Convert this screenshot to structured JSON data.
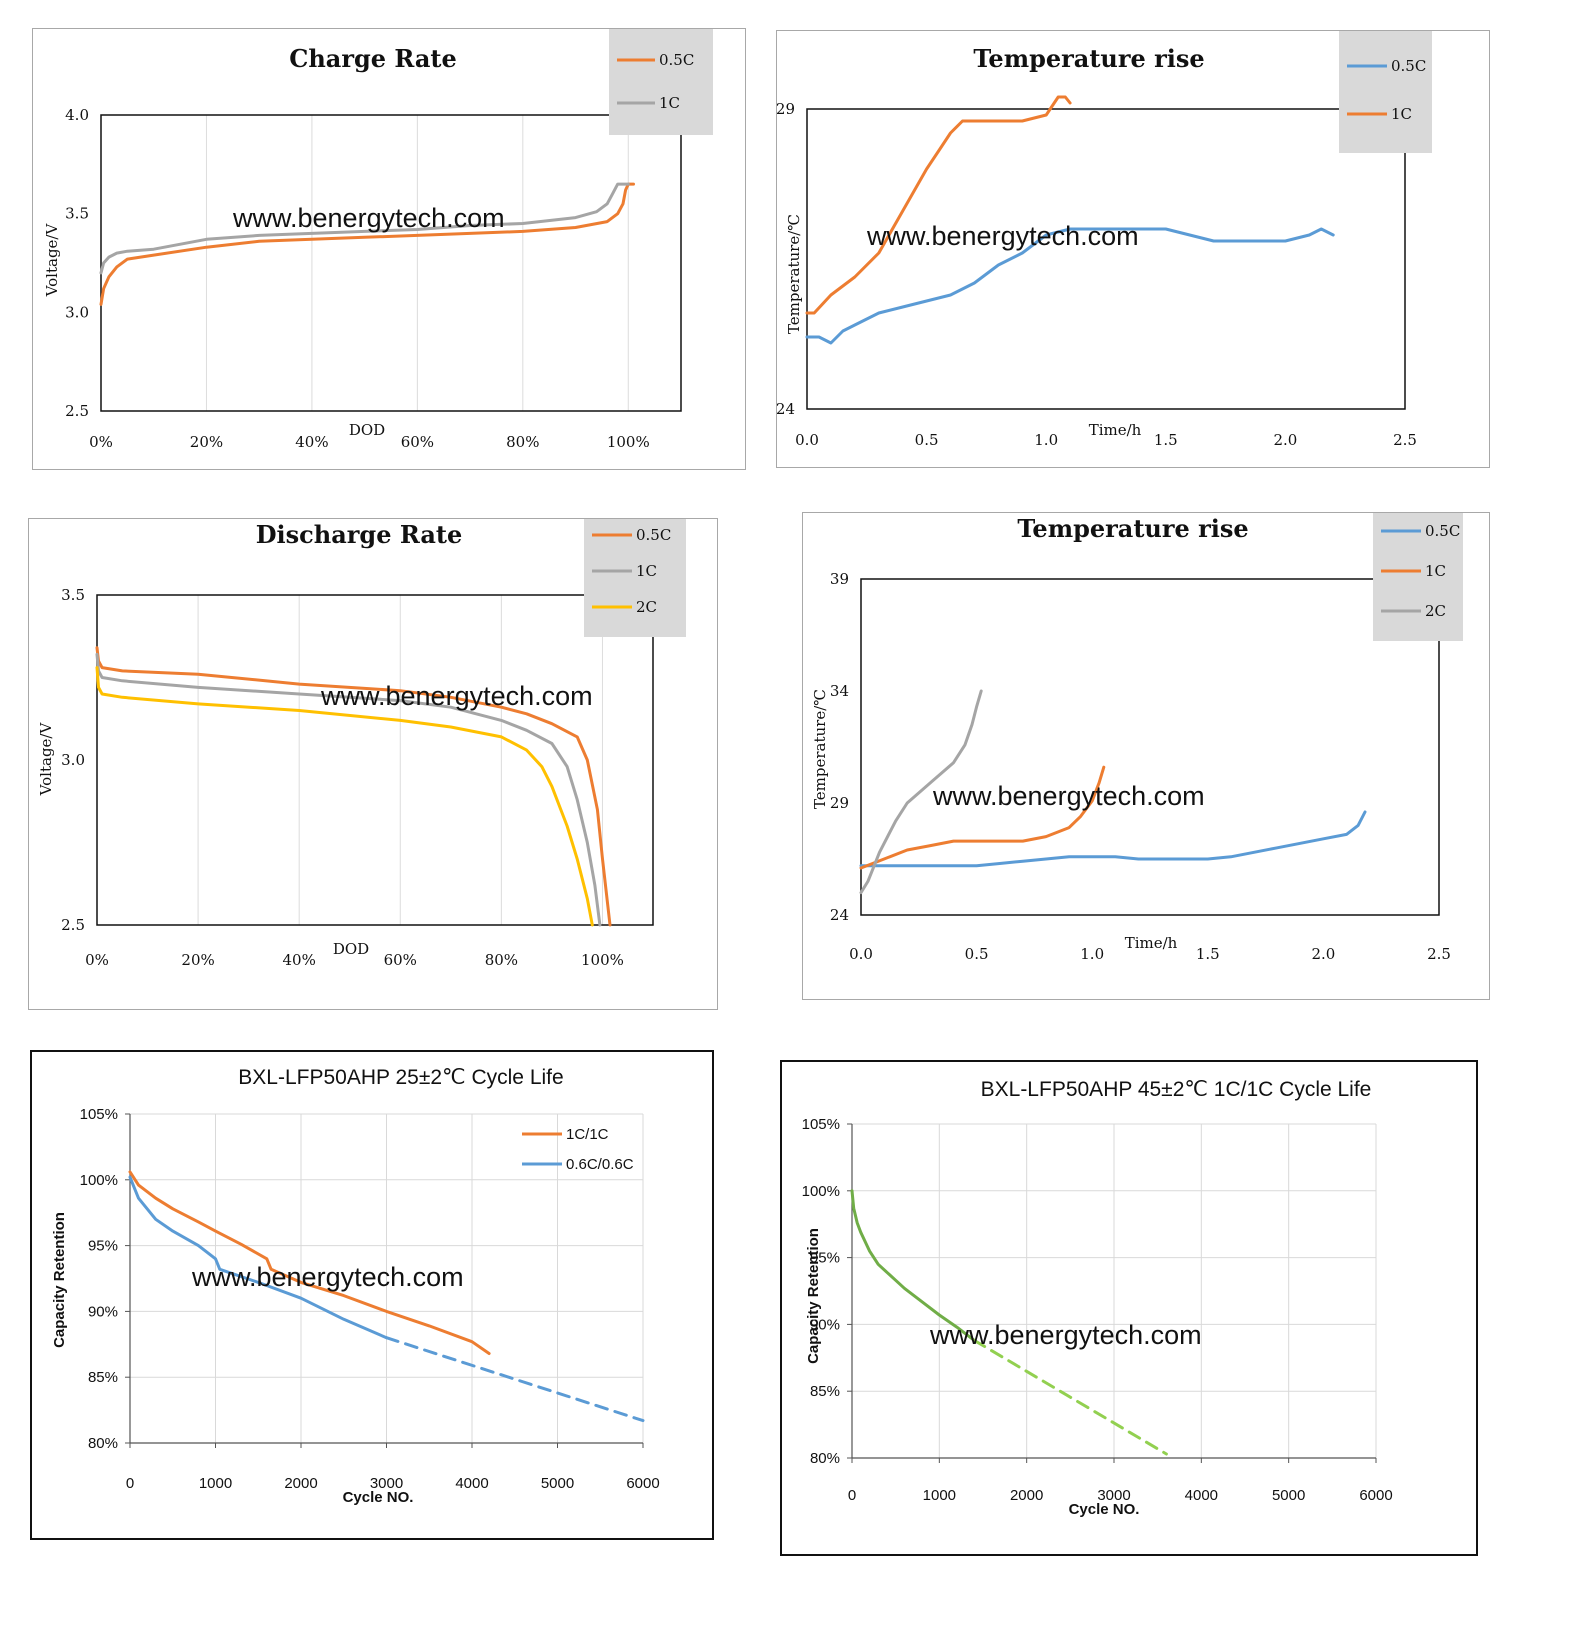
{
  "watermark": "www.benergytech.com",
  "charts": [
    {
      "id": "c1",
      "chart_data": {
        "type": "line",
        "title": "Charge Rate",
        "xlabel": "DOD",
        "ylabel": "Voltage/V",
        "xlim": [
          0,
          110
        ],
        "ylim": [
          2.5,
          4.0
        ],
        "xticks": [
          0,
          20,
          40,
          60,
          80,
          100
        ],
        "xtick_labels": [
          "0%",
          "20%",
          "40%",
          "60%",
          "80%",
          "100%"
        ],
        "yticks": [
          2.5,
          3.0,
          3.5,
          4.0
        ],
        "ytick_labels": [
          "2.5",
          "3.0",
          "3.5",
          "4.0"
        ],
        "grid": "vertical",
        "legend": "top-right",
        "series": [
          {
            "name": "0.5C",
            "color": "#ED7D31",
            "x": [
              0,
              0.5,
              1.5,
              3,
              5,
              10,
              20,
              30,
              40,
              50,
              60,
              70,
              80,
              90,
              96,
              98,
              99,
              99.5,
              100,
              101
            ],
            "y": [
              3.04,
              3.12,
              3.18,
              3.23,
              3.27,
              3.29,
              3.33,
              3.36,
              3.37,
              3.38,
              3.39,
              3.4,
              3.41,
              3.43,
              3.46,
              3.5,
              3.55,
              3.62,
              3.65,
              3.65
            ]
          },
          {
            "name": "1C",
            "color": "#A5A5A5",
            "x": [
              0,
              0.5,
              1.5,
              3,
              5,
              10,
              20,
              30,
              40,
              50,
              60,
              70,
              80,
              90,
              94,
              96,
              97,
              98,
              99,
              100
            ],
            "y": [
              3.2,
              3.25,
              3.28,
              3.3,
              3.31,
              3.32,
              3.37,
              3.39,
              3.4,
              3.41,
              3.42,
              3.44,
              3.45,
              3.48,
              3.51,
              3.55,
              3.6,
              3.65,
              3.65,
              3.65
            ]
          }
        ]
      }
    },
    {
      "id": "c2",
      "chart_data": {
        "type": "line",
        "title": "Temperature rise",
        "xlabel": "Time/h",
        "ylabel": "Temperature/℃",
        "xlim": [
          0,
          2.5
        ],
        "ylim": [
          24,
          29
        ],
        "xticks": [
          0,
          0.5,
          1.0,
          1.5,
          2.0,
          2.5
        ],
        "xtick_labels": [
          "0.0",
          "0.5",
          "1.0",
          "1.5",
          "2.0",
          "2.5"
        ],
        "yticks": [
          24,
          29
        ],
        "ytick_labels": [
          "24",
          "29"
        ],
        "grid": "none",
        "legend": "top-right",
        "series": [
          {
            "name": "0.5C",
            "color": "#5B9BD5",
            "x": [
              0,
              0.05,
              0.1,
              0.15,
              0.2,
              0.3,
              0.4,
              0.5,
              0.6,
              0.7,
              0.8,
              0.9,
              1.0,
              1.1,
              1.2,
              1.3,
              1.4,
              1.5,
              1.6,
              1.7,
              1.8,
              1.9,
              2.0,
              2.1,
              2.15,
              2.2
            ],
            "y": [
              25.2,
              25.2,
              25.1,
              25.3,
              25.4,
              25.6,
              25.7,
              25.8,
              25.9,
              26.1,
              26.4,
              26.6,
              26.9,
              27.0,
              27.0,
              27.0,
              27.0,
              27.0,
              26.9,
              26.8,
              26.8,
              26.8,
              26.8,
              26.9,
              27.0,
              26.9
            ]
          },
          {
            "name": "1C",
            "color": "#ED7D31",
            "x": [
              0,
              0.03,
              0.1,
              0.2,
              0.3,
              0.4,
              0.5,
              0.55,
              0.6,
              0.65,
              0.7,
              0.75,
              0.8,
              0.9,
              1.0,
              1.05,
              1.08,
              1.1
            ],
            "y": [
              25.6,
              25.6,
              25.9,
              26.2,
              26.6,
              27.3,
              28.0,
              28.3,
              28.6,
              28.8,
              28.8,
              28.8,
              28.8,
              28.8,
              28.9,
              29.2,
              29.2,
              29.1
            ]
          }
        ]
      }
    },
    {
      "id": "c3",
      "chart_data": {
        "type": "line",
        "title": "Discharge Rate",
        "xlabel": "DOD",
        "ylabel": "Voltage/V",
        "xlim": [
          0,
          110
        ],
        "ylim": [
          2.5,
          3.5
        ],
        "xticks": [
          0,
          20,
          40,
          60,
          80,
          100
        ],
        "xtick_labels": [
          "0%",
          "20%",
          "40%",
          "60%",
          "80%",
          "100%"
        ],
        "yticks": [
          2.5,
          3.0,
          3.5
        ],
        "ytick_labels": [
          "2.5",
          "3.0",
          "3.5"
        ],
        "grid": "vertical",
        "legend": "top-right",
        "series": [
          {
            "name": "0.5C",
            "color": "#ED7D31",
            "x": [
              0,
              0.3,
              1,
              5,
              20,
              40,
              60,
              70,
              80,
              85,
              90,
              95,
              97,
              99,
              100,
              101.5
            ],
            "y": [
              3.34,
              3.3,
              3.28,
              3.27,
              3.26,
              3.23,
              3.21,
              3.19,
              3.16,
              3.14,
              3.11,
              3.07,
              3.0,
              2.85,
              2.7,
              2.5
            ]
          },
          {
            "name": "1C",
            "color": "#A5A5A5",
            "x": [
              0,
              0.3,
              1,
              5,
              20,
              40,
              60,
              70,
              80,
              85,
              90,
              93,
              95,
              97,
              98.5,
              99.5
            ],
            "y": [
              3.32,
              3.27,
              3.25,
              3.24,
              3.22,
              3.2,
              3.18,
              3.16,
              3.12,
              3.09,
              3.05,
              2.98,
              2.88,
              2.75,
              2.62,
              2.5
            ]
          },
          {
            "name": "2C",
            "color": "#FFC000",
            "x": [
              0,
              0.3,
              1,
              5,
              20,
              40,
              60,
              70,
              80,
              85,
              88,
              90,
              93,
              95,
              97,
              98
            ],
            "y": [
              3.28,
              3.22,
              3.2,
              3.19,
              3.17,
              3.15,
              3.12,
              3.1,
              3.07,
              3.03,
              2.98,
              2.92,
              2.8,
              2.7,
              2.58,
              2.5
            ]
          }
        ]
      }
    },
    {
      "id": "c4",
      "chart_data": {
        "type": "line",
        "title": "Temperature rise",
        "xlabel": "Time/h",
        "ylabel": "Temperature/℃",
        "xlim": [
          0,
          2.5
        ],
        "ylim": [
          24,
          39
        ],
        "xticks": [
          0,
          0.5,
          1.0,
          1.5,
          2.0,
          2.5
        ],
        "xtick_labels": [
          "0.0",
          "0.5",
          "1.0",
          "1.5",
          "2.0",
          "2.5"
        ],
        "yticks": [
          24,
          29,
          34,
          39
        ],
        "ytick_labels": [
          "24",
          "29",
          "34",
          "39"
        ],
        "grid": "none",
        "legend": "top-right",
        "series": [
          {
            "name": "0.5C",
            "color": "#5B9BD5",
            "x": [
              0,
              0.2,
              0.4,
              0.5,
              0.6,
              0.7,
              0.8,
              0.9,
              1.0,
              1.1,
              1.2,
              1.3,
              1.4,
              1.5,
              1.6,
              1.7,
              1.8,
              1.9,
              2.0,
              2.1,
              2.15,
              2.18
            ],
            "y": [
              26.2,
              26.2,
              26.2,
              26.2,
              26.3,
              26.4,
              26.5,
              26.6,
              26.6,
              26.6,
              26.5,
              26.5,
              26.5,
              26.5,
              26.6,
              26.8,
              27.0,
              27.2,
              27.4,
              27.6,
              28.0,
              28.6
            ]
          },
          {
            "name": "1C",
            "color": "#ED7D31",
            "x": [
              0,
              0.1,
              0.2,
              0.3,
              0.4,
              0.5,
              0.6,
              0.7,
              0.8,
              0.9,
              0.95,
              1.0,
              1.03,
              1.05
            ],
            "y": [
              26.1,
              26.5,
              26.9,
              27.1,
              27.3,
              27.3,
              27.3,
              27.3,
              27.5,
              27.9,
              28.4,
              29.1,
              29.9,
              30.6
            ]
          },
          {
            "name": "2C",
            "color": "#A5A5A5",
            "x": [
              0,
              0.03,
              0.08,
              0.15,
              0.2,
              0.3,
              0.4,
              0.45,
              0.48,
              0.5,
              0.52
            ],
            "y": [
              25.0,
              25.5,
              26.8,
              28.2,
              29.0,
              29.9,
              30.8,
              31.6,
              32.5,
              33.3,
              34.0
            ]
          }
        ]
      }
    },
    {
      "id": "c5",
      "chart_data": {
        "type": "line",
        "title": "BXL-LFP50AHP 25±2℃  Cycle Life",
        "xlabel": "Cycle NO.",
        "ylabel": "Capacity Retention",
        "xlim": [
          0,
          6000
        ],
        "ylim": [
          80,
          105
        ],
        "xticks": [
          0,
          1000,
          2000,
          3000,
          4000,
          5000,
          6000
        ],
        "xtick_labels": [
          "0",
          "1000",
          "2000",
          "3000",
          "4000",
          "5000",
          "6000"
        ],
        "yticks": [
          80,
          85,
          90,
          95,
          100,
          105
        ],
        "ytick_labels": [
          "80%",
          "85%",
          "90%",
          "95%",
          "100%",
          "105%"
        ],
        "grid": "both",
        "legend": "top-right",
        "series": [
          {
            "name": "1C/1C",
            "color": "#ED7D31",
            "x": [
              0,
              100,
              300,
              500,
              800,
              1000,
              1300,
              1600,
              1650,
              2000,
              2500,
              3000,
              3500,
              4000,
              4200
            ],
            "y": [
              100.6,
              99.6,
              98.6,
              97.8,
              96.8,
              96.1,
              95.1,
              94.0,
              93.2,
              92.2,
              91.2,
              90.0,
              88.9,
              87.7,
              86.8
            ]
          },
          {
            "name": "0.6C/0.6C",
            "color": "#5B9BD5",
            "x": [
              0,
              100,
              300,
              500,
              800,
              1000,
              1050,
              1500,
              2000,
              2500,
              3000
            ],
            "y": [
              100.2,
              98.6,
              97.0,
              96.1,
              95.0,
              94.0,
              93.2,
              92.2,
              91.0,
              89.4,
              88.0
            ]
          },
          {
            "name": "",
            "color": "#5B9BD5",
            "dashed": true,
            "x": [
              3000,
              6000
            ],
            "y": [
              88.0,
              81.7
            ]
          }
        ]
      }
    },
    {
      "id": "c6",
      "chart_data": {
        "type": "line",
        "title": "BXL-LFP50AHP 45±2℃ 1C/1C Cycle Life",
        "xlabel": "Cycle NO.",
        "ylabel": "Capacity Retention",
        "xlim": [
          0,
          6000
        ],
        "ylim": [
          80,
          105
        ],
        "xticks": [
          0,
          1000,
          2000,
          3000,
          4000,
          5000,
          6000
        ],
        "xtick_labels": [
          "0",
          "1000",
          "2000",
          "3000",
          "4000",
          "5000",
          "6000"
        ],
        "yticks": [
          80,
          85,
          90,
          95,
          100,
          105
        ],
        "ytick_labels": [
          "80%",
          "85%",
          "90%",
          "95%",
          "100%",
          "105%"
        ],
        "grid": "both",
        "legend": "none",
        "series": [
          {
            "name": "",
            "color": "#70AD47",
            "x": [
              0,
              20,
              60,
              100,
              200,
              300,
              400,
              500,
              600,
              800,
              1000,
              1200,
              1400
            ],
            "y": [
              100.0,
              98.7,
              97.6,
              96.9,
              95.5,
              94.5,
              93.9,
              93.3,
              92.7,
              91.7,
              90.7,
              89.8,
              88.8
            ]
          },
          {
            "name": "",
            "color": "#92D050",
            "dashed": true,
            "x": [
              1400,
              3600
            ],
            "y": [
              88.8,
              80.3
            ]
          }
        ]
      }
    }
  ]
}
